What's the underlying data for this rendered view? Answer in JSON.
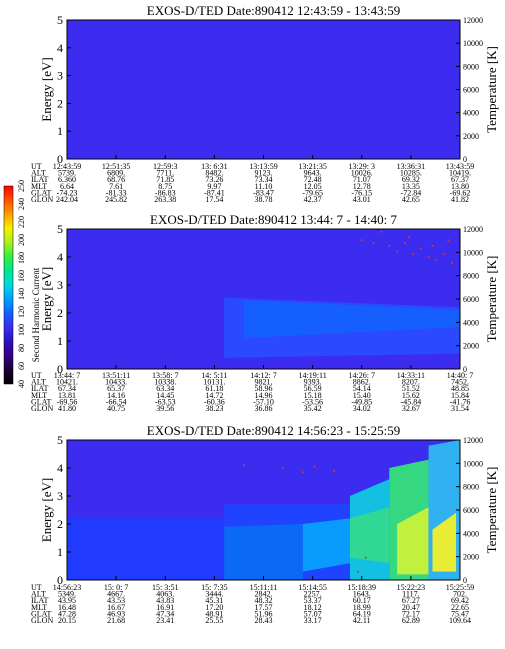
{
  "colorbar": {
    "label": "Second Harmonic Current",
    "ticks": [
      "40",
      "60",
      "80",
      "100",
      "120",
      "140",
      "160",
      "180",
      "200",
      "220",
      "240",
      "250"
    ]
  },
  "chart_data": [
    {
      "type": "heatmap",
      "title": "EXOS-D/TED   Date:890412   12:43:59 - 13:43:59",
      "ylabel": "Energy [eV]",
      "ylabel_right": "Temperature [K]",
      "ylim": [
        0,
        5
      ],
      "ylim_right": [
        0,
        12000
      ],
      "yticks": [
        "0",
        "1",
        "2",
        "3",
        "4",
        "5"
      ],
      "yticks_right": [
        "0",
        "2000",
        "4000",
        "6000",
        "8000",
        "10000",
        "12000"
      ],
      "fill_color": "#3c2cf0",
      "bands": [],
      "speckle_points": [],
      "orbit_rows": [
        "UT",
        "ALT",
        "ILAT",
        "MLT",
        "GLAT",
        "GLON"
      ],
      "orbit_columns": [
        [
          "12:43:59",
          "5739.",
          "6.360",
          "6.64",
          "-74.23",
          "242.04"
        ],
        [
          "12:51:35",
          "6809.",
          "68.76",
          "7.61",
          "-81.33",
          "245.82"
        ],
        [
          "12:59:3",
          "7711.",
          "71.85",
          "8.75",
          "-86.83",
          "263.38"
        ],
        [
          "13: 6:31",
          "8482.",
          "73.26",
          "9.97",
          "-87.41",
          "17.54"
        ],
        [
          "13:13:59",
          "9123.",
          "73.34",
          "11.10",
          "-83.47",
          "38.78"
        ],
        [
          "13:21:35",
          "9643.",
          "72.48",
          "12.05",
          "-79.65",
          "42.37"
        ],
        [
          "13:29: 3",
          "10026.",
          "71.07",
          "12.78",
          "-76.15",
          "43.01"
        ],
        [
          "13:36:31",
          "10285.",
          "69.32",
          "13.35",
          "-72.84",
          "42.65"
        ],
        [
          "13:43:59",
          "10419.",
          "67.37",
          "13.80",
          "-69.62",
          "41.82"
        ]
      ]
    },
    {
      "type": "heatmap",
      "title": "EXOS-D/TED   Date:890412  13:44: 7 - 14:40: 7",
      "ylabel": "Energy [eV]",
      "ylabel_right": "Temperature [K]",
      "ylim": [
        0,
        5
      ],
      "ylim_right": [
        0,
        12000
      ],
      "yticks": [
        "0",
        "1",
        "2",
        "3",
        "4",
        "5"
      ],
      "yticks_right": [
        "0",
        "2000",
        "4000",
        "6000",
        "8000",
        "10000",
        "12000"
      ],
      "fill_color": "#3c2cf0",
      "bands": [
        {
          "t0": 0.4,
          "t1": 1.0,
          "e0": 0.4,
          "e1": 2.55,
          "e0_end": 0.55,
          "e1_end": 2.2,
          "color": "#2a4cff"
        },
        {
          "t0": 0.45,
          "t1": 1.0,
          "e0": 1.1,
          "e1": 2.45,
          "e0_end": 1.5,
          "e1_end": 2.1,
          "color": "#1460ff"
        }
      ],
      "speckle_points": [
        [
          0.75,
          4.6
        ],
        [
          0.78,
          4.5
        ],
        [
          0.82,
          4.4
        ],
        [
          0.84,
          4.2
        ],
        [
          0.86,
          4.5
        ],
        [
          0.88,
          4.1
        ],
        [
          0.9,
          4.3
        ],
        [
          0.92,
          4.0
        ],
        [
          0.94,
          3.9
        ],
        [
          0.96,
          4.1
        ],
        [
          0.98,
          3.8
        ],
        [
          0.8,
          4.9
        ],
        [
          0.87,
          4.7
        ],
        [
          0.93,
          4.4
        ],
        [
          0.97,
          4.6
        ]
      ],
      "orbit_rows": [
        "UT",
        "ALT",
        "ILAT",
        "MLT",
        "GLAT",
        "GLON"
      ],
      "orbit_columns": [
        [
          "13:44: 7",
          "10421.",
          "67.34",
          "13.81",
          "-69.56",
          "41.80"
        ],
        [
          "13:51:11",
          "10433.",
          "65.37",
          "14.16",
          "-66.54",
          "40.75"
        ],
        [
          "13:58: 7",
          "10338.",
          "63.34",
          "14.45",
          "-63.53",
          "39.56"
        ],
        [
          "14: 5:11",
          "10131.",
          "61.18",
          "14.72",
          "-60.36",
          "38.23"
        ],
        [
          "14:12: 7",
          "9821.",
          "58.96",
          "14.96",
          "-57.10",
          "36.86"
        ],
        [
          "14:19:11",
          "9393.",
          "56.59",
          "15.18",
          "-53.56",
          "35.42"
        ],
        [
          "14:26: 7",
          "8862.",
          "54.14",
          "15.40",
          "-49.85",
          "34.02"
        ],
        [
          "14:33:11",
          "8207.",
          "51.52",
          "15.62",
          "-45.84",
          "32.67"
        ],
        [
          "14:40: 7",
          "7452.",
          "48.85",
          "15.84",
          "-41.76",
          "31.54"
        ]
      ]
    },
    {
      "type": "heatmap",
      "title": "EXOS-D/TED   Date:890412  14:56:23 - 15:25:59",
      "ylabel": "Energy [eV]",
      "ylabel_right": "Temperature [K]",
      "ylim": [
        0,
        5
      ],
      "ylim_right": [
        0,
        12000
      ],
      "yticks": [
        "0",
        "1",
        "2",
        "3",
        "4",
        "5"
      ],
      "yticks_right": [
        "0",
        "2000",
        "4000",
        "6000",
        "8000",
        "10000",
        "12000"
      ],
      "fill_color": "#3c2cf0",
      "bands": [
        {
          "t0": 0.0,
          "t1": 0.4,
          "e0": 0.0,
          "e1": 2.2,
          "e0_end": 0.0,
          "e1_end": 2.2,
          "color": "#1f3cff"
        },
        {
          "t0": 0.4,
          "t1": 0.72,
          "e0": 0.0,
          "e1": 2.7,
          "e0_end": 0.0,
          "e1_end": 2.7,
          "color": "#1e44ff"
        },
        {
          "t0": 0.4,
          "t1": 0.6,
          "e0": 0.0,
          "e1": 1.9,
          "e0_end": 0.0,
          "e1_end": 2.0,
          "color": "#0c6bf5"
        },
        {
          "t0": 0.6,
          "t1": 0.72,
          "e0": 0.3,
          "e1": 2.0,
          "e0_end": 0.6,
          "e1_end": 2.2,
          "color": "#0aa0ff"
        },
        {
          "t0": 0.72,
          "t1": 0.82,
          "e0": 0.0,
          "e1": 3.0,
          "e0_end": 0.0,
          "e1_end": 3.6,
          "color": "#12c8e0"
        },
        {
          "t0": 0.72,
          "t1": 0.82,
          "e0": 0.8,
          "e1": 2.2,
          "e0_end": 0.6,
          "e1_end": 2.6,
          "color": "#33d890"
        },
        {
          "t0": 0.82,
          "t1": 0.92,
          "e0": 0.0,
          "e1": 4.0,
          "e0_end": 0.0,
          "e1_end": 4.3,
          "color": "#36e07a"
        },
        {
          "t0": 0.84,
          "t1": 0.92,
          "e0": 0.2,
          "e1": 2.0,
          "e0_end": 0.2,
          "e1_end": 2.6,
          "color": "#c8f23a"
        },
        {
          "t0": 0.92,
          "t1": 1.0,
          "e0": 0.0,
          "e1": 4.8,
          "e0_end": 0.0,
          "e1_end": 5.0,
          "color": "#2fb8f0"
        },
        {
          "t0": 0.93,
          "t1": 0.99,
          "e0": 0.3,
          "e1": 1.8,
          "e0_end": 0.3,
          "e1_end": 2.4,
          "color": "#f2ef2a"
        }
      ],
      "speckle_points": [
        [
          0.55,
          4.0
        ],
        [
          0.6,
          3.85
        ],
        [
          0.45,
          4.1
        ],
        [
          0.63,
          4.05
        ],
        [
          0.68,
          3.9
        ],
        [
          0.74,
          0.3
        ],
        [
          0.76,
          0.8
        ]
      ],
      "orbit_rows": [
        "UT",
        "ALT",
        "ILAT",
        "MLT",
        "GLAT",
        "GLON"
      ],
      "orbit_columns": [
        [
          "14:56:23",
          "5349.",
          "43.95",
          "16.48",
          "47.28",
          "20.15"
        ],
        [
          "15: 0: 7",
          "4667.",
          "43.53",
          "16.67",
          "46.93",
          "21.68"
        ],
        [
          "15: 3:51",
          "4063.",
          "43.83",
          "16.91",
          "47.34",
          "23.41"
        ],
        [
          "15: 7:35",
          "3444.",
          "45.31",
          "17.20",
          "48.91",
          "25.55"
        ],
        [
          "15:11:11",
          "2842.",
          "48.32",
          "17.57",
          "51.96",
          "28.43"
        ],
        [
          "15:14:55",
          "2257.",
          "53.37",
          "18.12",
          "57.07",
          "33.17"
        ],
        [
          "15:18:39",
          "1643.",
          "60.17",
          "18.99",
          "64.19",
          "42.11"
        ],
        [
          "15:22:23",
          "1117.",
          "67.27",
          "20.47",
          "72.17",
          "62.89"
        ],
        [
          "15:25:59",
          "702.",
          "69.42",
          "22.65",
          "75.47",
          "109.64"
        ]
      ]
    }
  ]
}
